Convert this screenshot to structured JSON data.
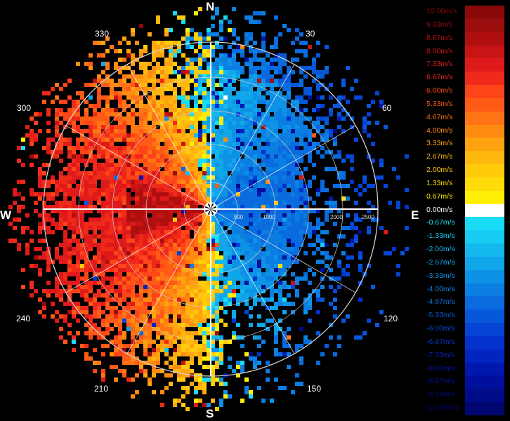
{
  "compass": {
    "north": "N",
    "east": "E",
    "south": "S",
    "west": "W"
  },
  "azimuth_labels": [
    "30",
    "60",
    "120",
    "150",
    "210",
    "240",
    "300",
    "330"
  ],
  "range_labels": [
    "500",
    "1000",
    "2000",
    "2500"
  ],
  "legend": [
    {
      "label": "10.00m/s",
      "color": "#8a0a0a"
    },
    {
      "label": "9.33m/s",
      "color": "#9c0d0d"
    },
    {
      "label": "8.67m/s",
      "color": "#b00f0f"
    },
    {
      "label": "8.00m/s",
      "color": "#c81414"
    },
    {
      "label": "7.33m/s",
      "color": "#e01a1a"
    },
    {
      "label": "6.67m/s",
      "color": "#f02a1a"
    },
    {
      "label": "6.00m/s",
      "color": "#ff4419"
    },
    {
      "label": "5.33m/s",
      "color": "#ff5a16"
    },
    {
      "label": "4.67m/s",
      "color": "#ff7414"
    },
    {
      "label": "4.00m/s",
      "color": "#ff8c12"
    },
    {
      "label": "3.33m/s",
      "color": "#ffa310"
    },
    {
      "label": "2.67m/s",
      "color": "#ffb80e"
    },
    {
      "label": "2.00m/s",
      "color": "#ffcb0b"
    },
    {
      "label": "1.33m/s",
      "color": "#ffdc08"
    },
    {
      "label": "0.67m/s",
      "color": "#ffee05"
    },
    {
      "label": "0.00m/s",
      "color": "#ffffff"
    },
    {
      "label": "-0.67m/s",
      "color": "#19dcf5"
    },
    {
      "label": "-1.33m/s",
      "color": "#16ccf2"
    },
    {
      "label": "-2.00m/s",
      "color": "#13b9ee"
    },
    {
      "label": "-2.67m/s",
      "color": "#10a6ea"
    },
    {
      "label": "-3.33m/s",
      "color": "#0e92e6"
    },
    {
      "label": "-4.00m/s",
      "color": "#0b7ee2"
    },
    {
      "label": "-4.67m/s",
      "color": "#096bde"
    },
    {
      "label": "-5.33m/s",
      "color": "#0757da"
    },
    {
      "label": "-6.00m/s",
      "color": "#0544d4"
    },
    {
      "label": "-6.67m/s",
      "color": "#0332cc"
    },
    {
      "label": "-7.33m/s",
      "color": "#0224c0"
    },
    {
      "label": "-8.00m/s",
      "color": "#0118b0"
    },
    {
      "label": "-8.67m/s",
      "color": "#00109c"
    },
    {
      "label": "-9.33m/s",
      "color": "#000b88"
    },
    {
      "label": "-10.00m/s",
      "color": "#000770"
    }
  ],
  "colors": {
    "background": "#000000",
    "rings": "#cfcfcf",
    "axes": "#ffffff"
  }
}
